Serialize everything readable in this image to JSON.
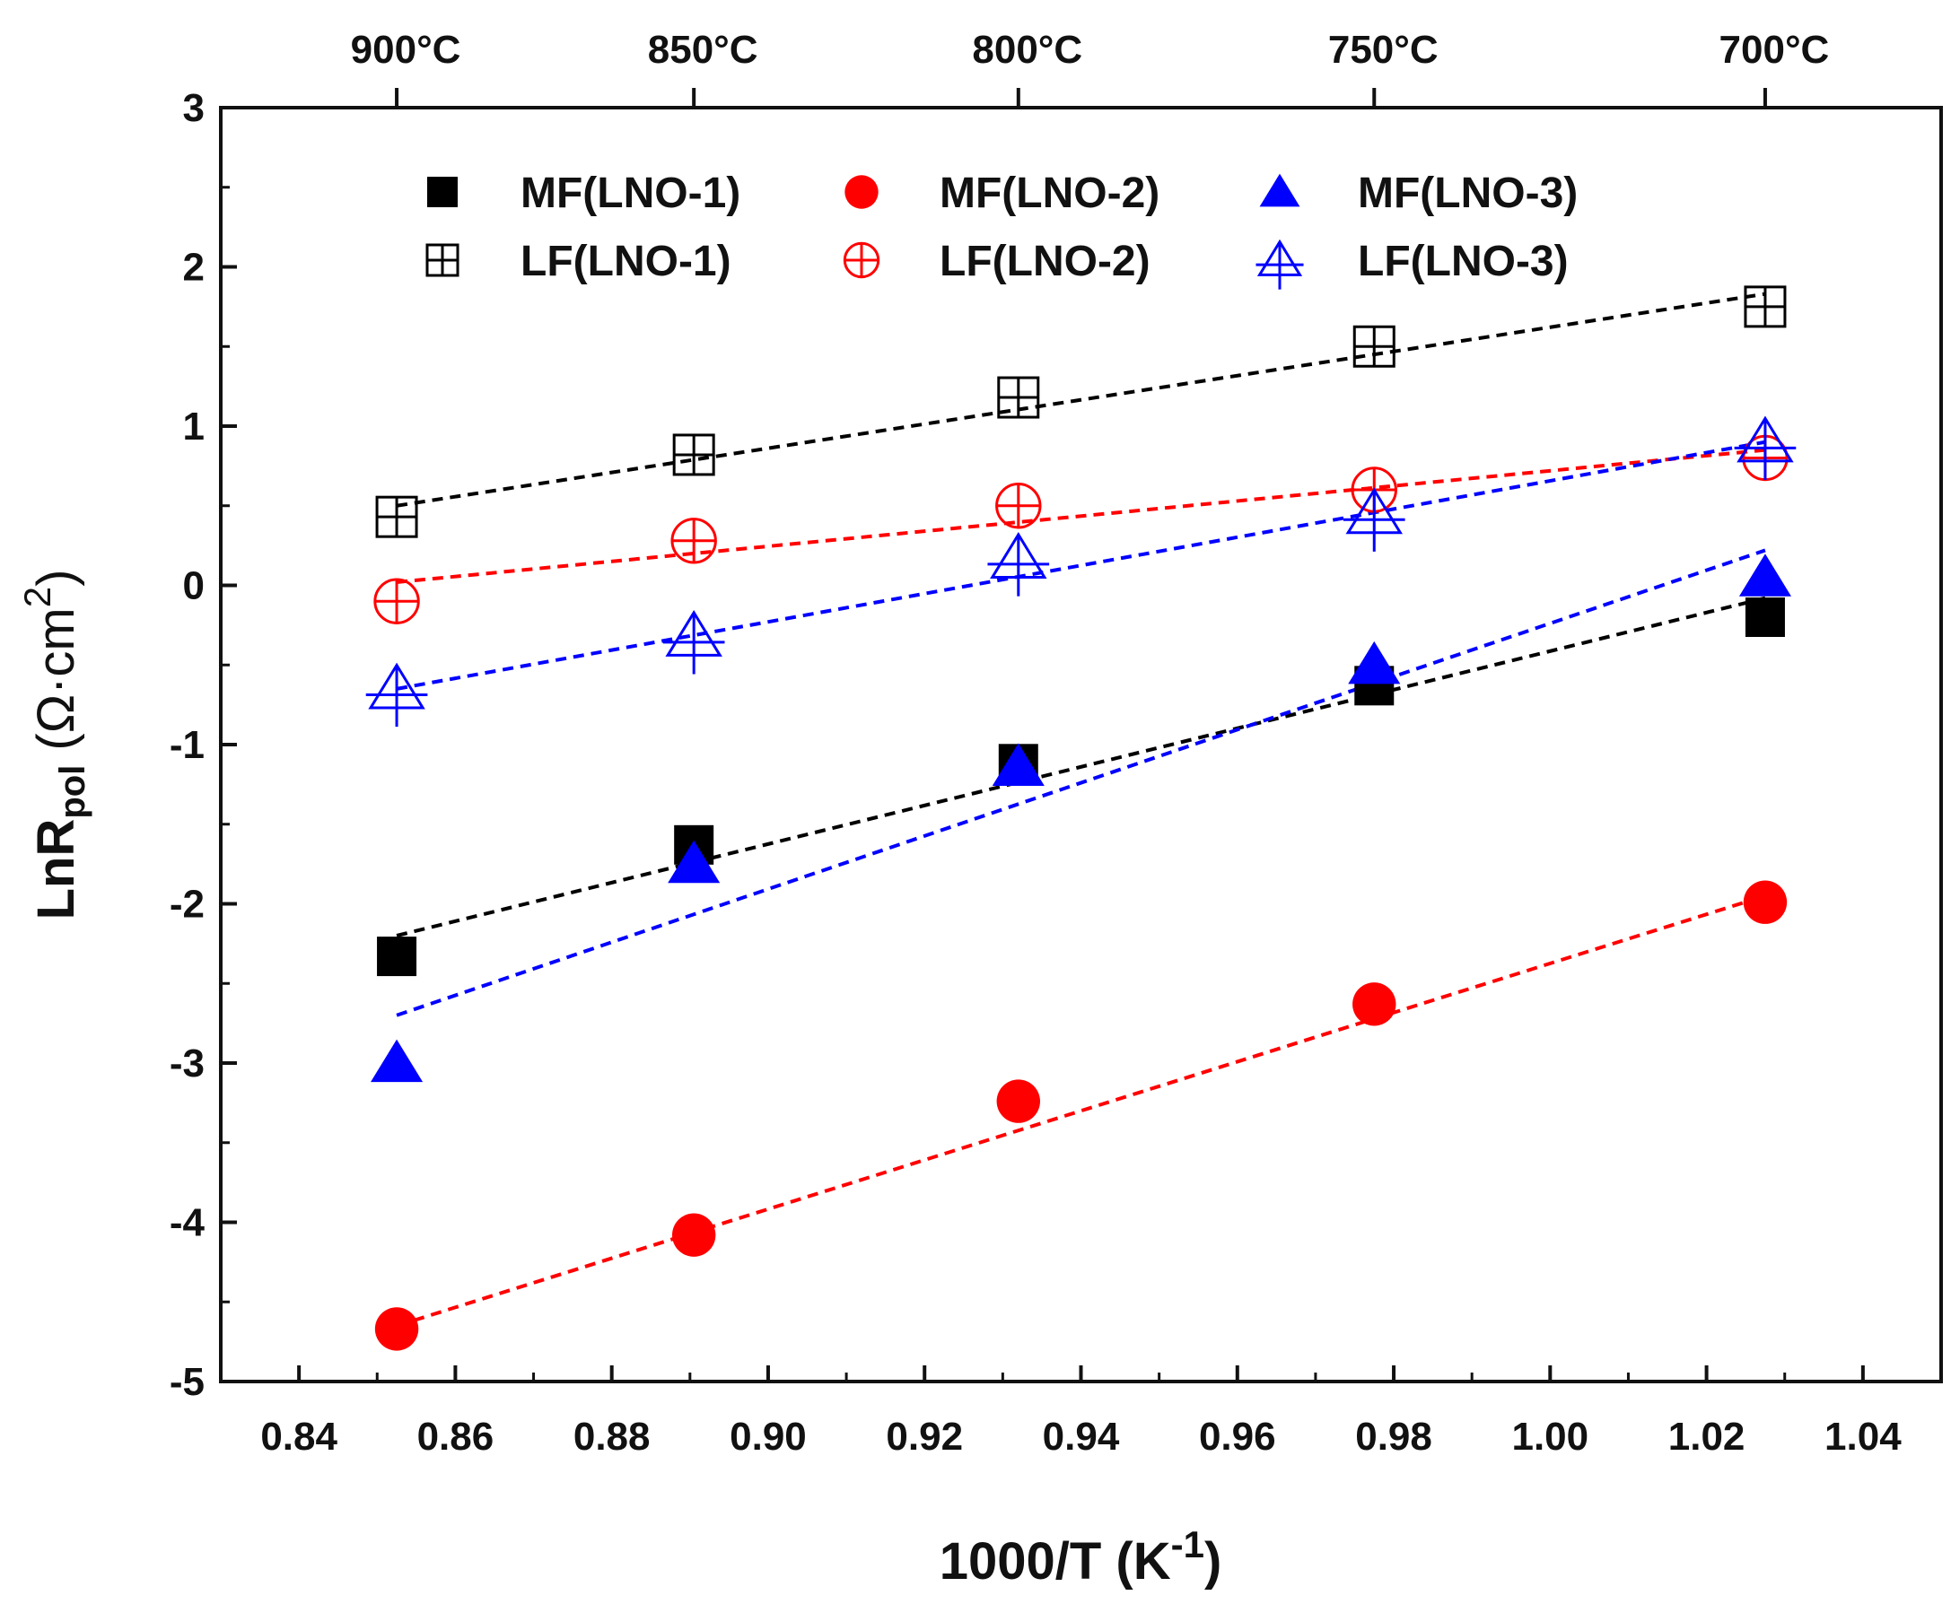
{
  "chart_data": {
    "type": "scatter",
    "title": "",
    "xlabel": "1000/T (K-1)",
    "ylabel": "LnRpol (Ω·cm2)",
    "xlabel_parts": {
      "main": "1000/T (K",
      "sup": "-1",
      "end": ")"
    },
    "ylabel_parts": {
      "main": "LnR",
      "sub": "pol",
      "mid": " (Ω·cm",
      "sup": "2",
      "end": ")"
    },
    "xlim": [
      0.83,
      1.05
    ],
    "ylim": [
      -5,
      3
    ],
    "x_ticks": [
      "0.84",
      "0.86",
      "0.88",
      "0.90",
      "0.92",
      "0.94",
      "0.96",
      "0.98",
      "1.00",
      "1.02",
      "1.04"
    ],
    "y_ticks": [
      "3",
      "2",
      "1",
      "0",
      "-1",
      "-2",
      "-3",
      "-4",
      "-5"
    ],
    "top_axis": [
      {
        "label": "900°C",
        "x": 0.8525
      },
      {
        "label": "850°C",
        "x": 0.8905
      },
      {
        "label": "800°C",
        "x": 0.932
      },
      {
        "label": "750°C",
        "x": 0.9775
      },
      {
        "label": "700°C",
        "x": 1.0275
      }
    ],
    "x": [
      0.8525,
      0.8905,
      0.932,
      0.9775,
      1.0275
    ],
    "grid": false,
    "legend_position": "top",
    "series": [
      {
        "name": "MF(LNO-1)",
        "marker": "filled-square",
        "color": "#000000",
        "values": [
          -2.33,
          -1.63,
          -1.12,
          -0.63,
          -0.2
        ],
        "fit": [
          -2.2,
          -0.08
        ]
      },
      {
        "name": "MF(LNO-2)",
        "marker": "filled-circle",
        "color": "#ff0000",
        "values": [
          -4.67,
          -4.08,
          -3.24,
          -2.63,
          -1.99
        ],
        "fit": [
          -4.65,
          -1.95
        ]
      },
      {
        "name": "MF(LNO-3)",
        "marker": "filled-triangle",
        "color": "#0000ff",
        "values": [
          -3.0,
          -1.75,
          -1.14,
          -0.5,
          0.05
        ],
        "fit": [
          -2.7,
          0.22
        ]
      },
      {
        "name": "LF(LNO-1)",
        "marker": "open-square-cross",
        "color": "#000000",
        "values": [
          0.43,
          0.82,
          1.18,
          1.5,
          1.75
        ],
        "fit": [
          0.5,
          1.83
        ]
      },
      {
        "name": "LF(LNO-2)",
        "marker": "open-circle-cross",
        "color": "#ff0000",
        "values": [
          -0.1,
          0.28,
          0.5,
          0.6,
          0.8
        ],
        "fit": [
          0.02,
          0.85
        ]
      },
      {
        "name": "LF(LNO-3)",
        "marker": "open-triangle-cross",
        "color": "#0000ff",
        "values": [
          -0.65,
          -0.32,
          0.17,
          0.45,
          0.9
        ],
        "fit": [
          -0.65,
          0.9
        ]
      }
    ]
  }
}
